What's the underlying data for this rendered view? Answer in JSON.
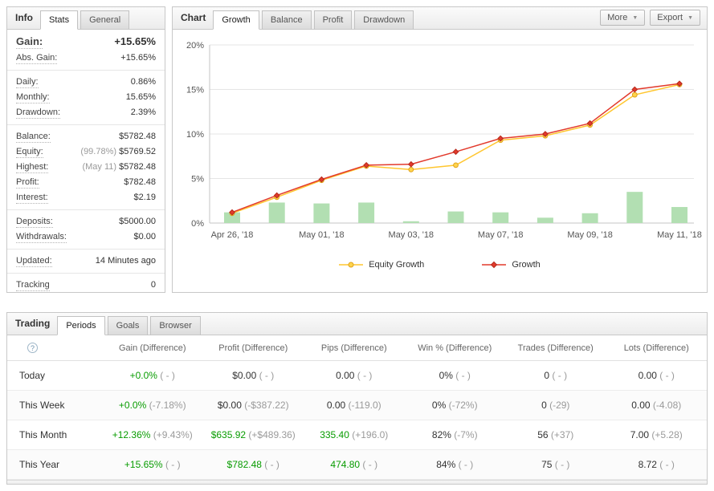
{
  "colors": {
    "positive": "#089c01",
    "diff_muted": "#9a9a9a"
  },
  "icons": {
    "chevron_down": "▼",
    "help": "?"
  },
  "info": {
    "title": "Info",
    "tabs": [
      {
        "label": "Stats",
        "active": true
      },
      {
        "label": "General",
        "active": false
      }
    ],
    "groups": [
      [
        {
          "label": "Gain:",
          "value": "+15.65%",
          "value_class": "green",
          "big": true
        },
        {
          "label": "Abs. Gain:",
          "value": "+15.65%",
          "value_class": "green"
        }
      ],
      [
        {
          "label": "Daily:",
          "value": "0.86%"
        },
        {
          "label": "Monthly:",
          "value": "15.65%"
        },
        {
          "label": "Drawdown:",
          "value": "2.39%"
        }
      ],
      [
        {
          "label": "Balance:",
          "value": "$5782.48"
        },
        {
          "label": "Equity:",
          "muted": "(99.78%)",
          "value": "$5769.52"
        },
        {
          "label": "Highest:",
          "muted": "(May 11)",
          "value": "$5782.48"
        },
        {
          "label": "Profit:",
          "value": "$782.48",
          "value_class": "green"
        },
        {
          "label": "Interest:",
          "value": "$2.19"
        }
      ],
      [
        {
          "label": "Deposits:",
          "value": "$5000.00"
        },
        {
          "label": "Withdrawals:",
          "value": "$0.00"
        }
      ],
      [
        {
          "label": "Updated:",
          "value": "14 Minutes ago"
        }
      ],
      [
        {
          "label": "Tracking",
          "value": "0"
        }
      ]
    ]
  },
  "chart": {
    "title": "Chart",
    "tabs": [
      {
        "label": "Growth",
        "active": true
      },
      {
        "label": "Balance",
        "active": false
      },
      {
        "label": "Profit",
        "active": false
      },
      {
        "label": "Drawdown",
        "active": false
      }
    ],
    "more_label": "More",
    "export_label": "Export"
  },
  "chart_data": {
    "type": "line",
    "title": "Growth",
    "ylim": [
      0,
      20
    ],
    "yticks": [
      0,
      5,
      10,
      15,
      20
    ],
    "ytick_suffix": "%",
    "x_ticks": [
      {
        "index": 0,
        "label": "Apr 26, '18"
      },
      {
        "index": 2,
        "label": "May 01, '18"
      },
      {
        "index": 4,
        "label": "May 03, '18"
      },
      {
        "index": 6,
        "label": "May 07, '18"
      },
      {
        "index": 8,
        "label": "May 09, '18"
      },
      {
        "index": 10,
        "label": "May 11, '18"
      }
    ],
    "series": [
      {
        "name": "Equity Growth",
        "color": "#ffc62f",
        "marker": "circle",
        "marker_fill": "#ffd44d",
        "marker_stroke": "#e0a31b",
        "values": [
          1.1,
          2.9,
          4.8,
          6.4,
          6.0,
          6.5,
          9.3,
          9.8,
          11.0,
          14.4,
          15.55
        ]
      },
      {
        "name": "Growth",
        "color": "#e23a2c",
        "marker": "diamond",
        "marker_fill": "#e23a2c",
        "marker_stroke": "#b52a1c",
        "values": [
          1.2,
          3.1,
          4.9,
          6.5,
          6.6,
          8.0,
          9.5,
          10.0,
          11.2,
          15.0,
          15.65
        ]
      }
    ],
    "bars": {
      "color": "#b2dfb2",
      "values": [
        1.2,
        2.3,
        2.2,
        2.3,
        0.2,
        1.3,
        1.2,
        0.6,
        1.1,
        3.5,
        1.8
      ]
    },
    "grid": true,
    "legend_position": "bottom"
  },
  "trading": {
    "title": "Trading",
    "tabs": [
      {
        "label": "Periods",
        "active": true
      },
      {
        "label": "Goals",
        "active": false
      },
      {
        "label": "Browser",
        "active": false
      }
    ],
    "table": {
      "columns": [
        "Gain (Difference)",
        "Profit (Difference)",
        "Pips (Difference)",
        "Win % (Difference)",
        "Trades (Difference)",
        "Lots (Difference)"
      ],
      "rows": [
        {
          "label": "Today",
          "cells": [
            {
              "main": "+0.0%",
              "diff": "( - )",
              "main_class": "green"
            },
            {
              "main": "$0.00",
              "diff": "( - )"
            },
            {
              "main": "0.00",
              "diff": "( - )"
            },
            {
              "main": "0%",
              "diff": "( - )"
            },
            {
              "main": "0",
              "diff": "( - )"
            },
            {
              "main": "0.00",
              "diff": "( - )"
            }
          ]
        },
        {
          "label": "This Week",
          "cells": [
            {
              "main": "+0.0%",
              "diff": "(-7.18%)",
              "main_class": "green"
            },
            {
              "main": "$0.00",
              "diff": "(-$387.22)"
            },
            {
              "main": "0.00",
              "diff": "(-119.0)"
            },
            {
              "main": "0%",
              "diff": "(-72%)"
            },
            {
              "main": "0",
              "diff": "(-29)"
            },
            {
              "main": "0.00",
              "diff": "(-4.08)"
            }
          ]
        },
        {
          "label": "This Month",
          "cells": [
            {
              "main": "+12.36%",
              "diff": "(+9.43%)",
              "main_class": "green"
            },
            {
              "main": "$635.92",
              "diff": "(+$489.36)",
              "main_class": "green"
            },
            {
              "main": "335.40",
              "diff": "(+196.0)",
              "main_class": "green"
            },
            {
              "main": "82%",
              "diff": "(-7%)"
            },
            {
              "main": "56",
              "diff": "(+37)"
            },
            {
              "main": "7.00",
              "diff": "(+5.28)"
            }
          ]
        },
        {
          "label": "This Year",
          "cells": [
            {
              "main": "+15.65%",
              "diff": "( - )",
              "main_class": "green"
            },
            {
              "main": "$782.48",
              "diff": "( - )",
              "main_class": "green"
            },
            {
              "main": "474.80",
              "diff": "( - )",
              "main_class": "green"
            },
            {
              "main": "84%",
              "diff": "( - )"
            },
            {
              "main": "75",
              "diff": "( - )"
            },
            {
              "main": "8.72",
              "diff": "( - )"
            }
          ]
        }
      ]
    }
  }
}
